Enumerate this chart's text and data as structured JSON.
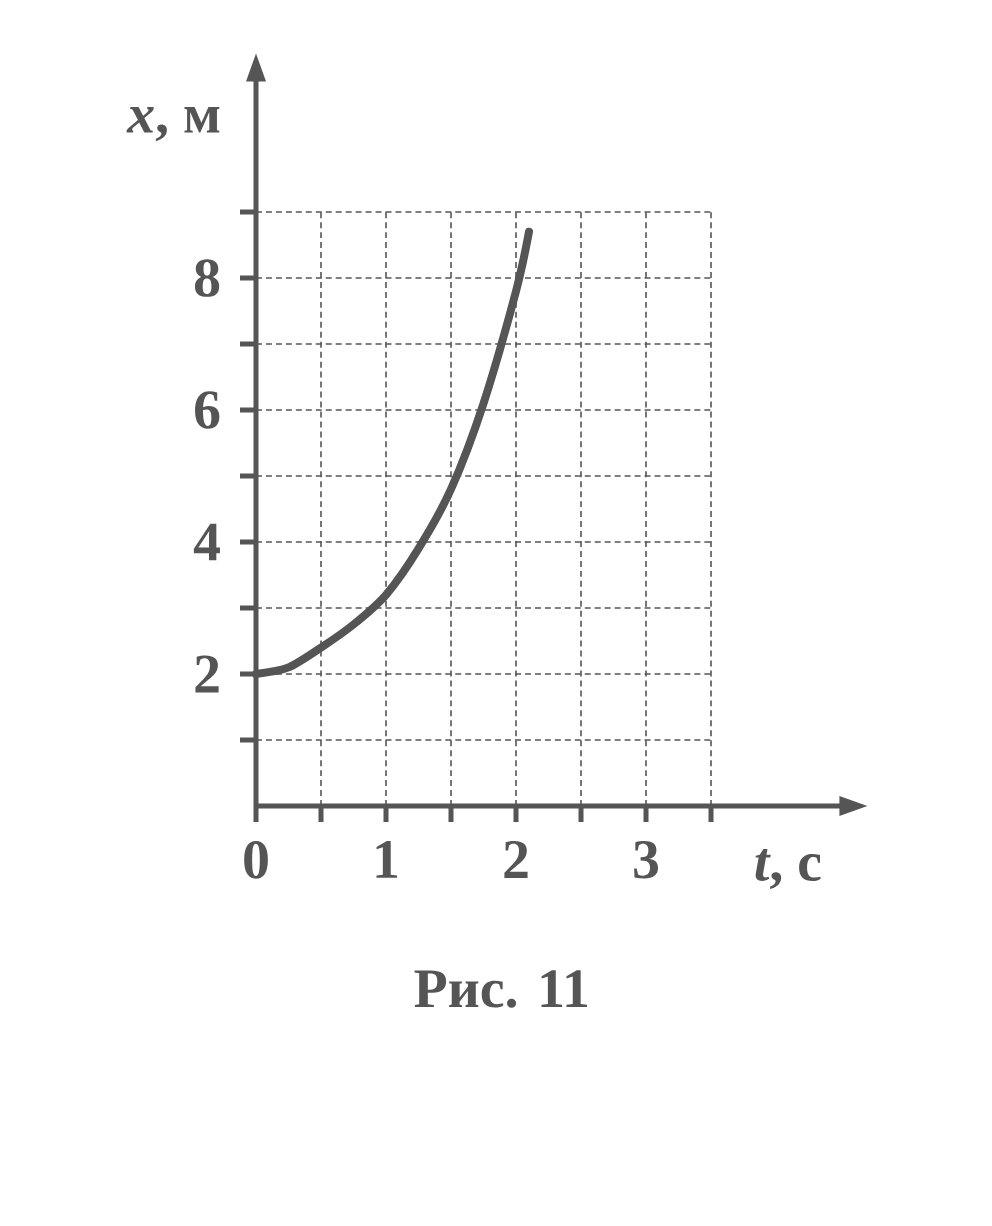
{
  "chart_data": {
    "type": "line",
    "xlabel": "*t*, с",
    "ylabel": "*x*, м",
    "x": [
      0,
      0.25,
      0.5,
      0.75,
      1,
      1.25,
      1.5,
      1.75,
      2,
      2.1
    ],
    "series": [
      {
        "color": "#555555",
        "values": [
          2,
          2.1,
          2.4,
          2.75,
          3.2,
          3.9,
          4.8,
          6.1,
          7.8,
          8.7
        ]
      }
    ],
    "xlim": [
      0,
      4.5
    ],
    "ylim": [
      0,
      11
    ],
    "xticks": [
      0,
      {
        "value": 0.5,
        "label": null
      },
      1,
      {
        "value": 1.5,
        "label": null
      },
      2,
      {
        "value": 2.5,
        "label": null
      },
      3,
      {
        "value": 3.5,
        "label": null
      }
    ],
    "yticks": [
      {
        "value": 1,
        "label": null
      },
      2,
      {
        "value": 3,
        "label": null
      },
      4,
      {
        "value": 5,
        "label": null
      },
      6,
      {
        "value": 7,
        "label": null
      },
      8,
      {
        "value": 9,
        "label": null
      }
    ],
    "grid": true,
    "annotations": [
      "Рис. 11"
    ]
  }
}
